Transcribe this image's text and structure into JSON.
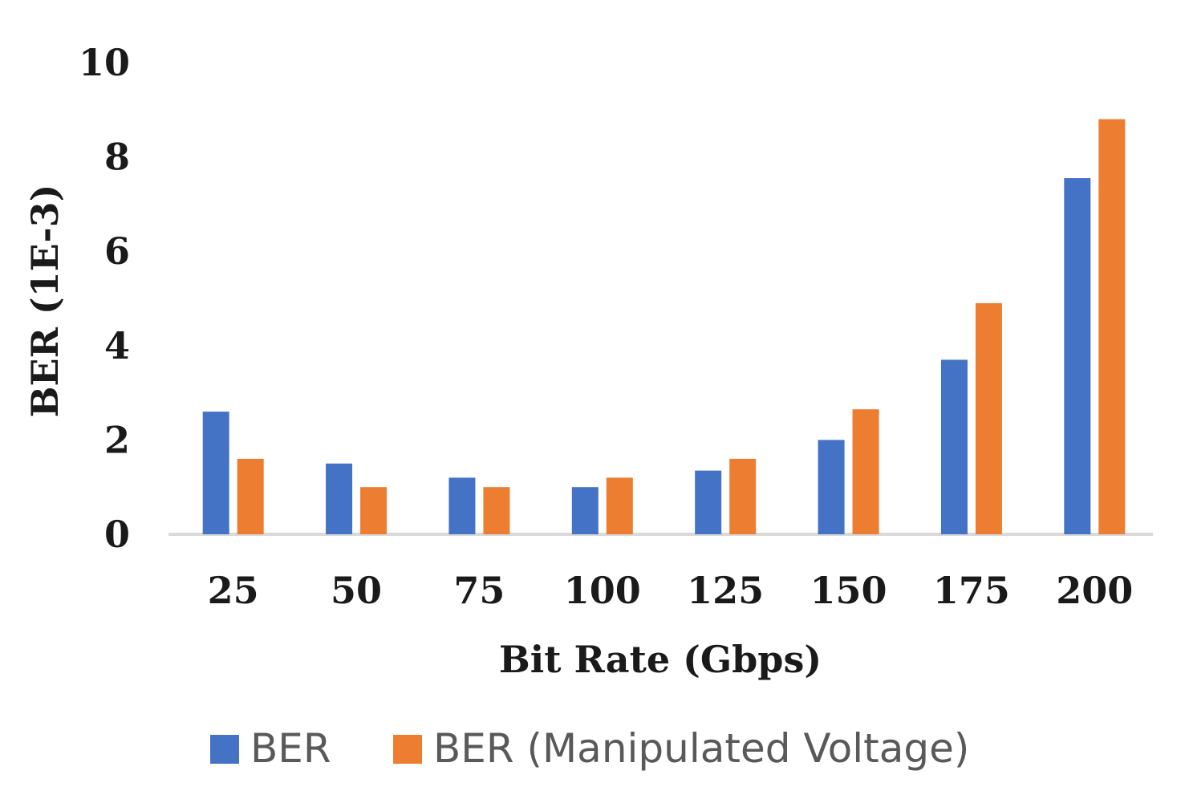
{
  "chart_data": {
    "type": "bar",
    "title": "",
    "xlabel": "Bit Rate (Gbps)",
    "ylabel": "BER (1E-3)",
    "ylim": [
      0,
      10
    ],
    "yticks": [
      0,
      2,
      4,
      6,
      8,
      10
    ],
    "grid": false,
    "legend_position": "bottom",
    "categories": [
      "25",
      "50",
      "75",
      "100",
      "125",
      "150",
      "175",
      "200"
    ],
    "series": [
      {
        "name": "BER",
        "color": "#4472C4",
        "values": [
          2.6,
          1.5,
          1.2,
          1.0,
          1.35,
          2.0,
          3.7,
          7.55
        ]
      },
      {
        "name": "BER (Manipulated Voltage)",
        "color": "#ED7D31",
        "values": [
          1.6,
          1.0,
          1.0,
          1.2,
          1.6,
          2.65,
          4.9,
          8.8
        ]
      }
    ]
  }
}
